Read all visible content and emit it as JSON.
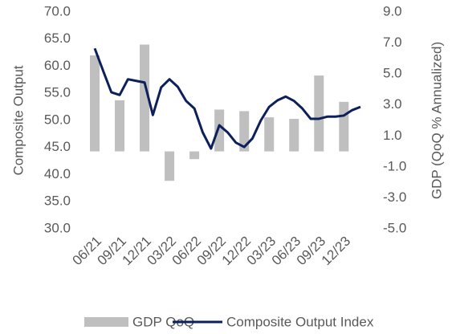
{
  "chart_data": {
    "type": "bar-line",
    "y_label": "Composite Output",
    "y2_label": "GDP (QoQ % Annualized)",
    "categories": [
      "06/21",
      null,
      null,
      "09/21",
      null,
      null,
      "12/21",
      null,
      null,
      "03/22",
      null,
      null,
      "06/22",
      null,
      null,
      "09/22",
      null,
      null,
      "12/22",
      null,
      null,
      "03/23",
      null,
      null,
      "06/23",
      null,
      null,
      "09/23",
      null,
      null,
      "12/23",
      null,
      null
    ],
    "series": [
      {
        "name": "GDP QoQ",
        "type": "bar",
        "axis": "y2",
        "color": "#bfbfbf",
        "values": [
          6.2,
          null,
          null,
          3.3,
          null,
          null,
          6.9,
          null,
          null,
          -1.9,
          null,
          null,
          -0.5,
          null,
          null,
          2.7,
          null,
          null,
          2.6,
          null,
          null,
          2.2,
          null,
          null,
          2.1,
          null,
          null,
          4.9,
          null,
          null,
          3.2,
          null,
          null
        ]
      },
      {
        "name": "Composite Output Index",
        "type": "line",
        "axis": "y",
        "color": "#0d1f5c",
        "values": [
          63.3,
          59.2,
          55.2,
          54.7,
          57.6,
          57.3,
          57.0,
          51.0,
          56.1,
          57.6,
          56.2,
          53.6,
          52.2,
          47.8,
          44.8,
          49.1,
          47.8,
          45.9,
          45.1,
          46.7,
          50.0,
          52.5,
          53.7,
          54.4,
          53.6,
          52.2,
          50.3,
          50.3,
          50.7,
          50.7,
          50.9,
          51.9,
          52.5
        ]
      }
    ],
    "ylim": [
      30,
      70
    ],
    "yticks": [
      {
        "value": 30,
        "label": "30.0"
      },
      {
        "value": 35,
        "label": "35.0"
      },
      {
        "value": 40,
        "label": "40.0"
      },
      {
        "value": 45,
        "label": "45.0"
      },
      {
        "value": 50,
        "label": "50.0"
      },
      {
        "value": 55,
        "label": "55.0"
      },
      {
        "value": 60,
        "label": "60.0"
      },
      {
        "value": 65,
        "label": "65.0"
      },
      {
        "value": 70,
        "label": "70.0"
      }
    ],
    "y2lim": [
      -5,
      9
    ],
    "y2ticks": [
      {
        "value": -5,
        "label": "-5.0"
      },
      {
        "value": -3,
        "label": "-3.0"
      },
      {
        "value": -1,
        "label": "-1.0"
      },
      {
        "value": 1,
        "label": "1.0"
      },
      {
        "value": 3,
        "label": "3.0"
      },
      {
        "value": 5,
        "label": "5.0"
      },
      {
        "value": 7,
        "label": "7.0"
      },
      {
        "value": 9,
        "label": "9.0"
      }
    ],
    "grid": false,
    "legend": "bottom"
  }
}
